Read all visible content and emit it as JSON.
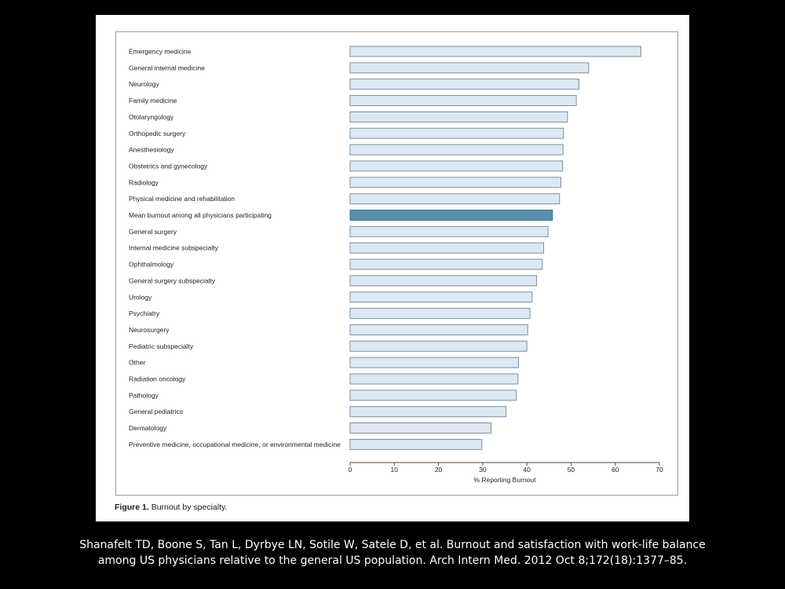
{
  "chart_data": {
    "type": "bar",
    "orientation": "horizontal",
    "categories": [
      "Emergency medicine",
      "General internal medicine",
      "Neurology",
      "Family medicine",
      "Otolaryngology",
      "Orthopedic surgery",
      "Anesthesiology",
      "Obstetrics and gynecology",
      "Radiology",
      "Physical medicine and rehabilitation",
      "Mean burnout among all physicians participating",
      "General surgery",
      "Internal medicine subspecialty",
      "Ophthalmology",
      "General surgery subspecialty",
      "Urology",
      "Psychiatry",
      "Neurosurgery",
      "Pediatric subspecialty",
      "Other",
      "Radiation oncology",
      "Pathology",
      "General pediatrics",
      "Dermatology",
      "Preventive medicine, occupational medicine, or environmental medicine"
    ],
    "values": [
      65.8,
      54.0,
      51.8,
      51.2,
      49.2,
      48.3,
      48.2,
      48.1,
      47.7,
      47.4,
      45.8,
      44.8,
      43.8,
      43.5,
      42.2,
      41.2,
      40.7,
      40.2,
      40.0,
      38.1,
      38.0,
      37.6,
      35.3,
      31.9,
      29.8
    ],
    "highlight": "Mean burnout among all physicians participating",
    "xlabel": "% Reporting Burnout",
    "xlim": [
      0,
      70
    ],
    "xticks": [
      "0",
      "10",
      "20",
      "30",
      "40",
      "50",
      "60",
      "70"
    ],
    "colors": {
      "bar_fill": "#dde8f4",
      "bar_stroke": "#7d8f9e",
      "highlight_fill": "#5a8fad",
      "highlight_stroke": "#3f6f8c"
    }
  },
  "figure": {
    "number": "Figure 1.",
    "caption": "Burnout by specialty."
  },
  "citation": {
    "line1": "Shanafelt TD, Boone S, Tan L, Dyrbye LN, Sotile W, Satele D, et al. Burnout and satisfaction with work-life balance",
    "line2": "among US physicians relative to the general US population. Arch Intern Med. 2012 Oct 8;172(18):1377–85."
  }
}
